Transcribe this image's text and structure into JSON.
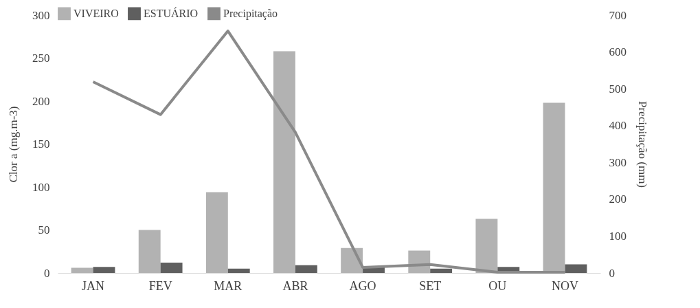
{
  "chart_data": {
    "type": "bar",
    "categories": [
      "JAN",
      "FEV",
      "MAR",
      "ABR",
      "AGO",
      "SET",
      "OU",
      "NOV"
    ],
    "ylabel": "Clor a (mg.m-3)",
    "y2label": "Precipitação (mm)",
    "series": [
      {
        "name": "VIVEIRO",
        "color": "#b2b2b2",
        "values": [
          6,
          50,
          94,
          258,
          29,
          26,
          63,
          198
        ]
      },
      {
        "name": "ESTUÁRIO",
        "color": "#5f5f5f",
        "values": [
          7,
          12,
          5,
          9,
          8,
          5,
          7,
          10
        ]
      },
      {
        "name": "Precipitação",
        "type": "line",
        "axis": "y2",
        "color": "#8a8a8a",
        "values": [
          519,
          430,
          657,
          382,
          15,
          23,
          2,
          2
        ]
      }
    ],
    "ylim": [
      0,
      300
    ],
    "yticks": [
      0,
      50,
      100,
      150,
      200,
      250,
      300
    ],
    "y2lim": [
      0,
      700
    ],
    "y2ticks": [
      0,
      100,
      200,
      300,
      400,
      500,
      600,
      700
    ],
    "grid": false,
    "legend": "top",
    "marker": "none",
    "line_style": "solid"
  }
}
